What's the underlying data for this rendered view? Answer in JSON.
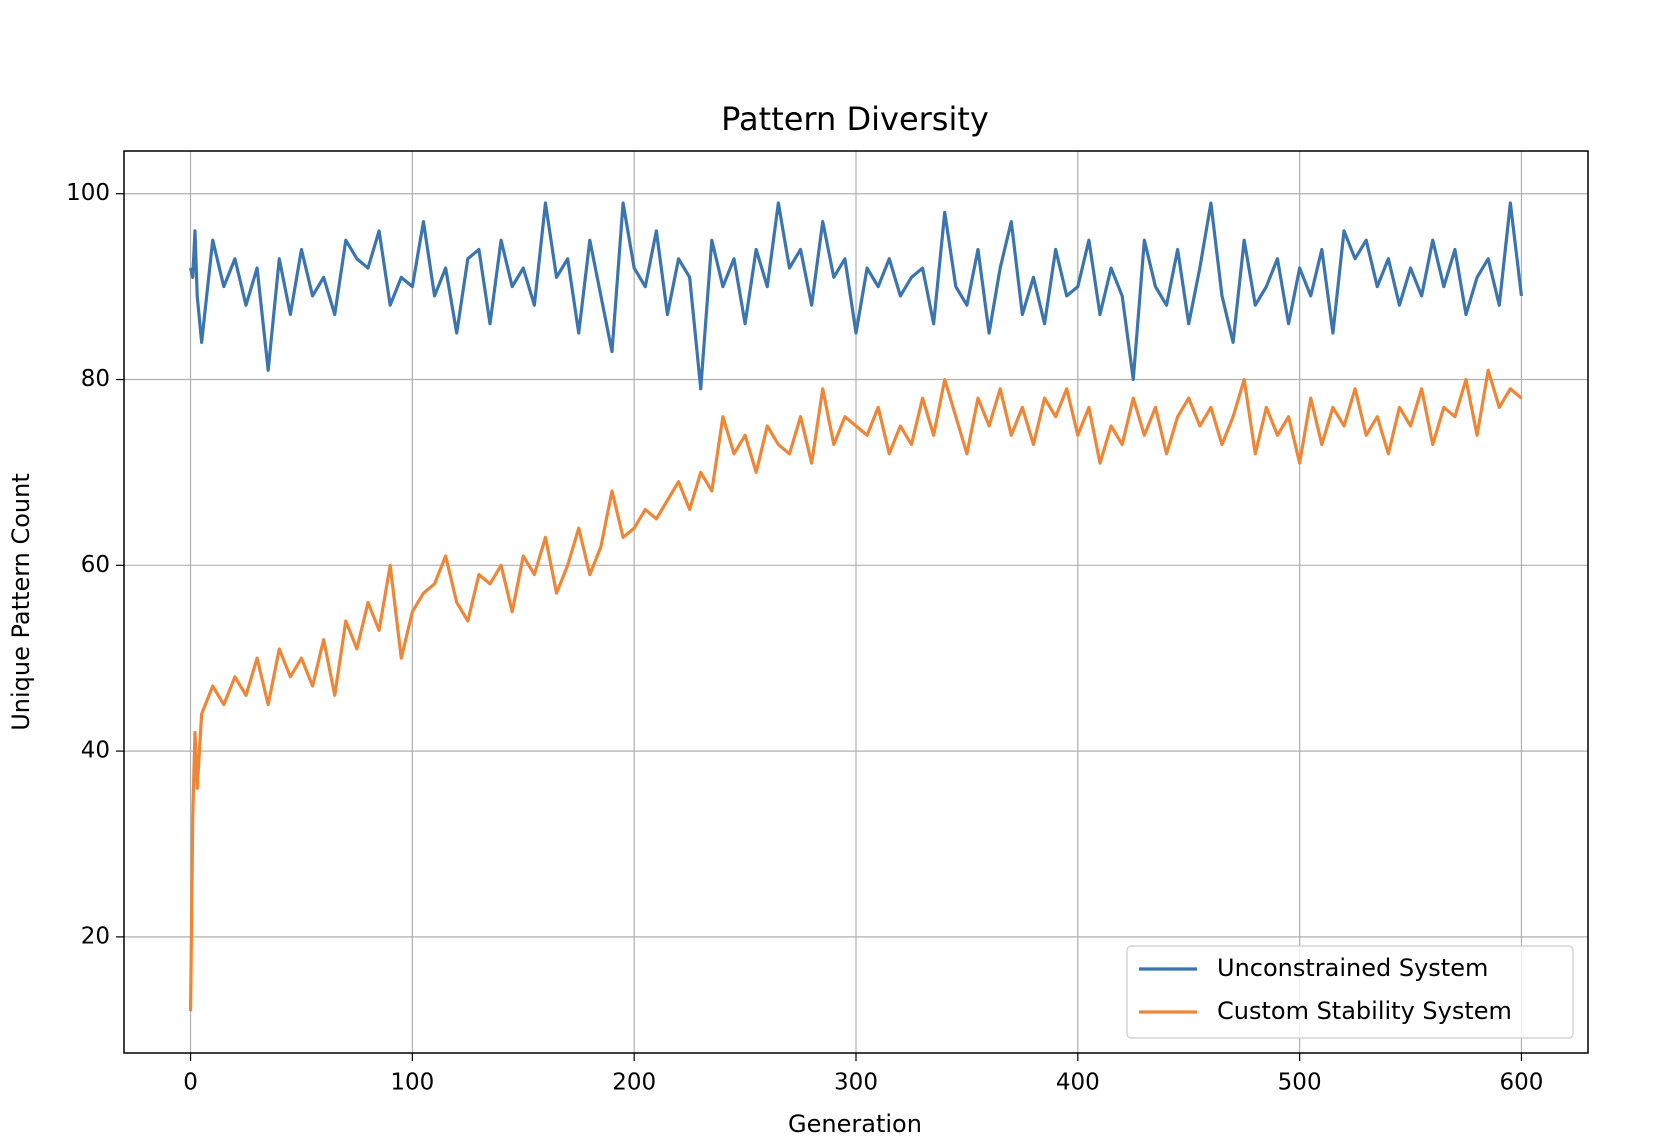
{
  "chart_data": {
    "type": "line",
    "title": "Pattern Diversity",
    "xlabel": "Generation",
    "ylabel": "Unique Pattern Count",
    "x": [
      0,
      1,
      2,
      3,
      5,
      10,
      15,
      20,
      25,
      30,
      35,
      40,
      45,
      50,
      55,
      60,
      65,
      70,
      75,
      80,
      85,
      90,
      95,
      100,
      105,
      110,
      115,
      120,
      125,
      130,
      135,
      140,
      145,
      150,
      155,
      160,
      165,
      170,
      175,
      180,
      185,
      190,
      195,
      200,
      205,
      210,
      215,
      220,
      225,
      230,
      235,
      240,
      245,
      250,
      255,
      260,
      265,
      270,
      275,
      280,
      285,
      290,
      295,
      300,
      305,
      310,
      315,
      320,
      325,
      330,
      335,
      340,
      345,
      350,
      355,
      360,
      365,
      370,
      375,
      380,
      385,
      390,
      395,
      400,
      405,
      410,
      415,
      420,
      425,
      430,
      435,
      440,
      445,
      450,
      455,
      460,
      465,
      470,
      475,
      480,
      485,
      490,
      495,
      500,
      505,
      510,
      515,
      520,
      525,
      530,
      535,
      540,
      545,
      550,
      555,
      560,
      565,
      570,
      575,
      580,
      585,
      590,
      595,
      600
    ],
    "series": [
      {
        "name": "Unconstrained System",
        "color": "#3b75af",
        "values": [
          92,
          91,
          96,
          89,
          84,
          95,
          90,
          93,
          88,
          92,
          81,
          93,
          87,
          94,
          89,
          91,
          87,
          95,
          93,
          92,
          96,
          88,
          91,
          90,
          97,
          89,
          92,
          85,
          93,
          94,
          86,
          95,
          90,
          92,
          88,
          99,
          91,
          93,
          85,
          95,
          89,
          83,
          99,
          92,
          90,
          96,
          87,
          93,
          91,
          79,
          95,
          90,
          93,
          86,
          94,
          90,
          99,
          92,
          94,
          88,
          97,
          91,
          93,
          85,
          92,
          90,
          93,
          89,
          91,
          92,
          86,
          98,
          90,
          88,
          94,
          85,
          92,
          97,
          87,
          91,
          86,
          94,
          89,
          90,
          95,
          87,
          92,
          89,
          80,
          95,
          90,
          88,
          94,
          86,
          92,
          99,
          89,
          84,
          95,
          88,
          90,
          93,
          86,
          92,
          89,
          94,
          85,
          96,
          93,
          95,
          90,
          93,
          88,
          92,
          89,
          95,
          90,
          94,
          87,
          91,
          93,
          88,
          99,
          89
        ]
      },
      {
        "name": "Custom Stability System",
        "color": "#ef8636",
        "values": [
          12,
          33,
          42,
          36,
          44,
          47,
          45,
          48,
          46,
          50,
          45,
          51,
          48,
          50,
          47,
          52,
          46,
          54,
          51,
          56,
          53,
          60,
          50,
          55,
          57,
          58,
          61,
          56,
          54,
          59,
          58,
          60,
          55,
          61,
          59,
          63,
          57,
          60,
          64,
          59,
          62,
          68,
          63,
          64,
          66,
          65,
          67,
          69,
          66,
          70,
          68,
          76,
          72,
          74,
          70,
          75,
          73,
          72,
          76,
          71,
          79,
          73,
          76,
          75,
          74,
          77,
          72,
          75,
          73,
          78,
          74,
          80,
          76,
          72,
          78,
          75,
          79,
          74,
          77,
          73,
          78,
          76,
          79,
          74,
          77,
          71,
          75,
          73,
          78,
          74,
          77,
          72,
          76,
          78,
          75,
          77,
          73,
          76,
          80,
          72,
          77,
          74,
          76,
          71,
          78,
          73,
          77,
          75,
          79,
          74,
          76,
          72,
          77,
          75,
          79,
          73,
          77,
          76,
          80,
          74,
          81,
          77,
          79,
          78
        ]
      }
    ],
    "xlim": [
      -30,
      630
    ],
    "ylim": [
      7.5,
      104.6
    ],
    "xticks": [
      0,
      100,
      200,
      300,
      400,
      500,
      600
    ],
    "yticks": [
      20,
      40,
      60,
      80,
      100
    ],
    "grid": true,
    "legend": "lower right"
  }
}
